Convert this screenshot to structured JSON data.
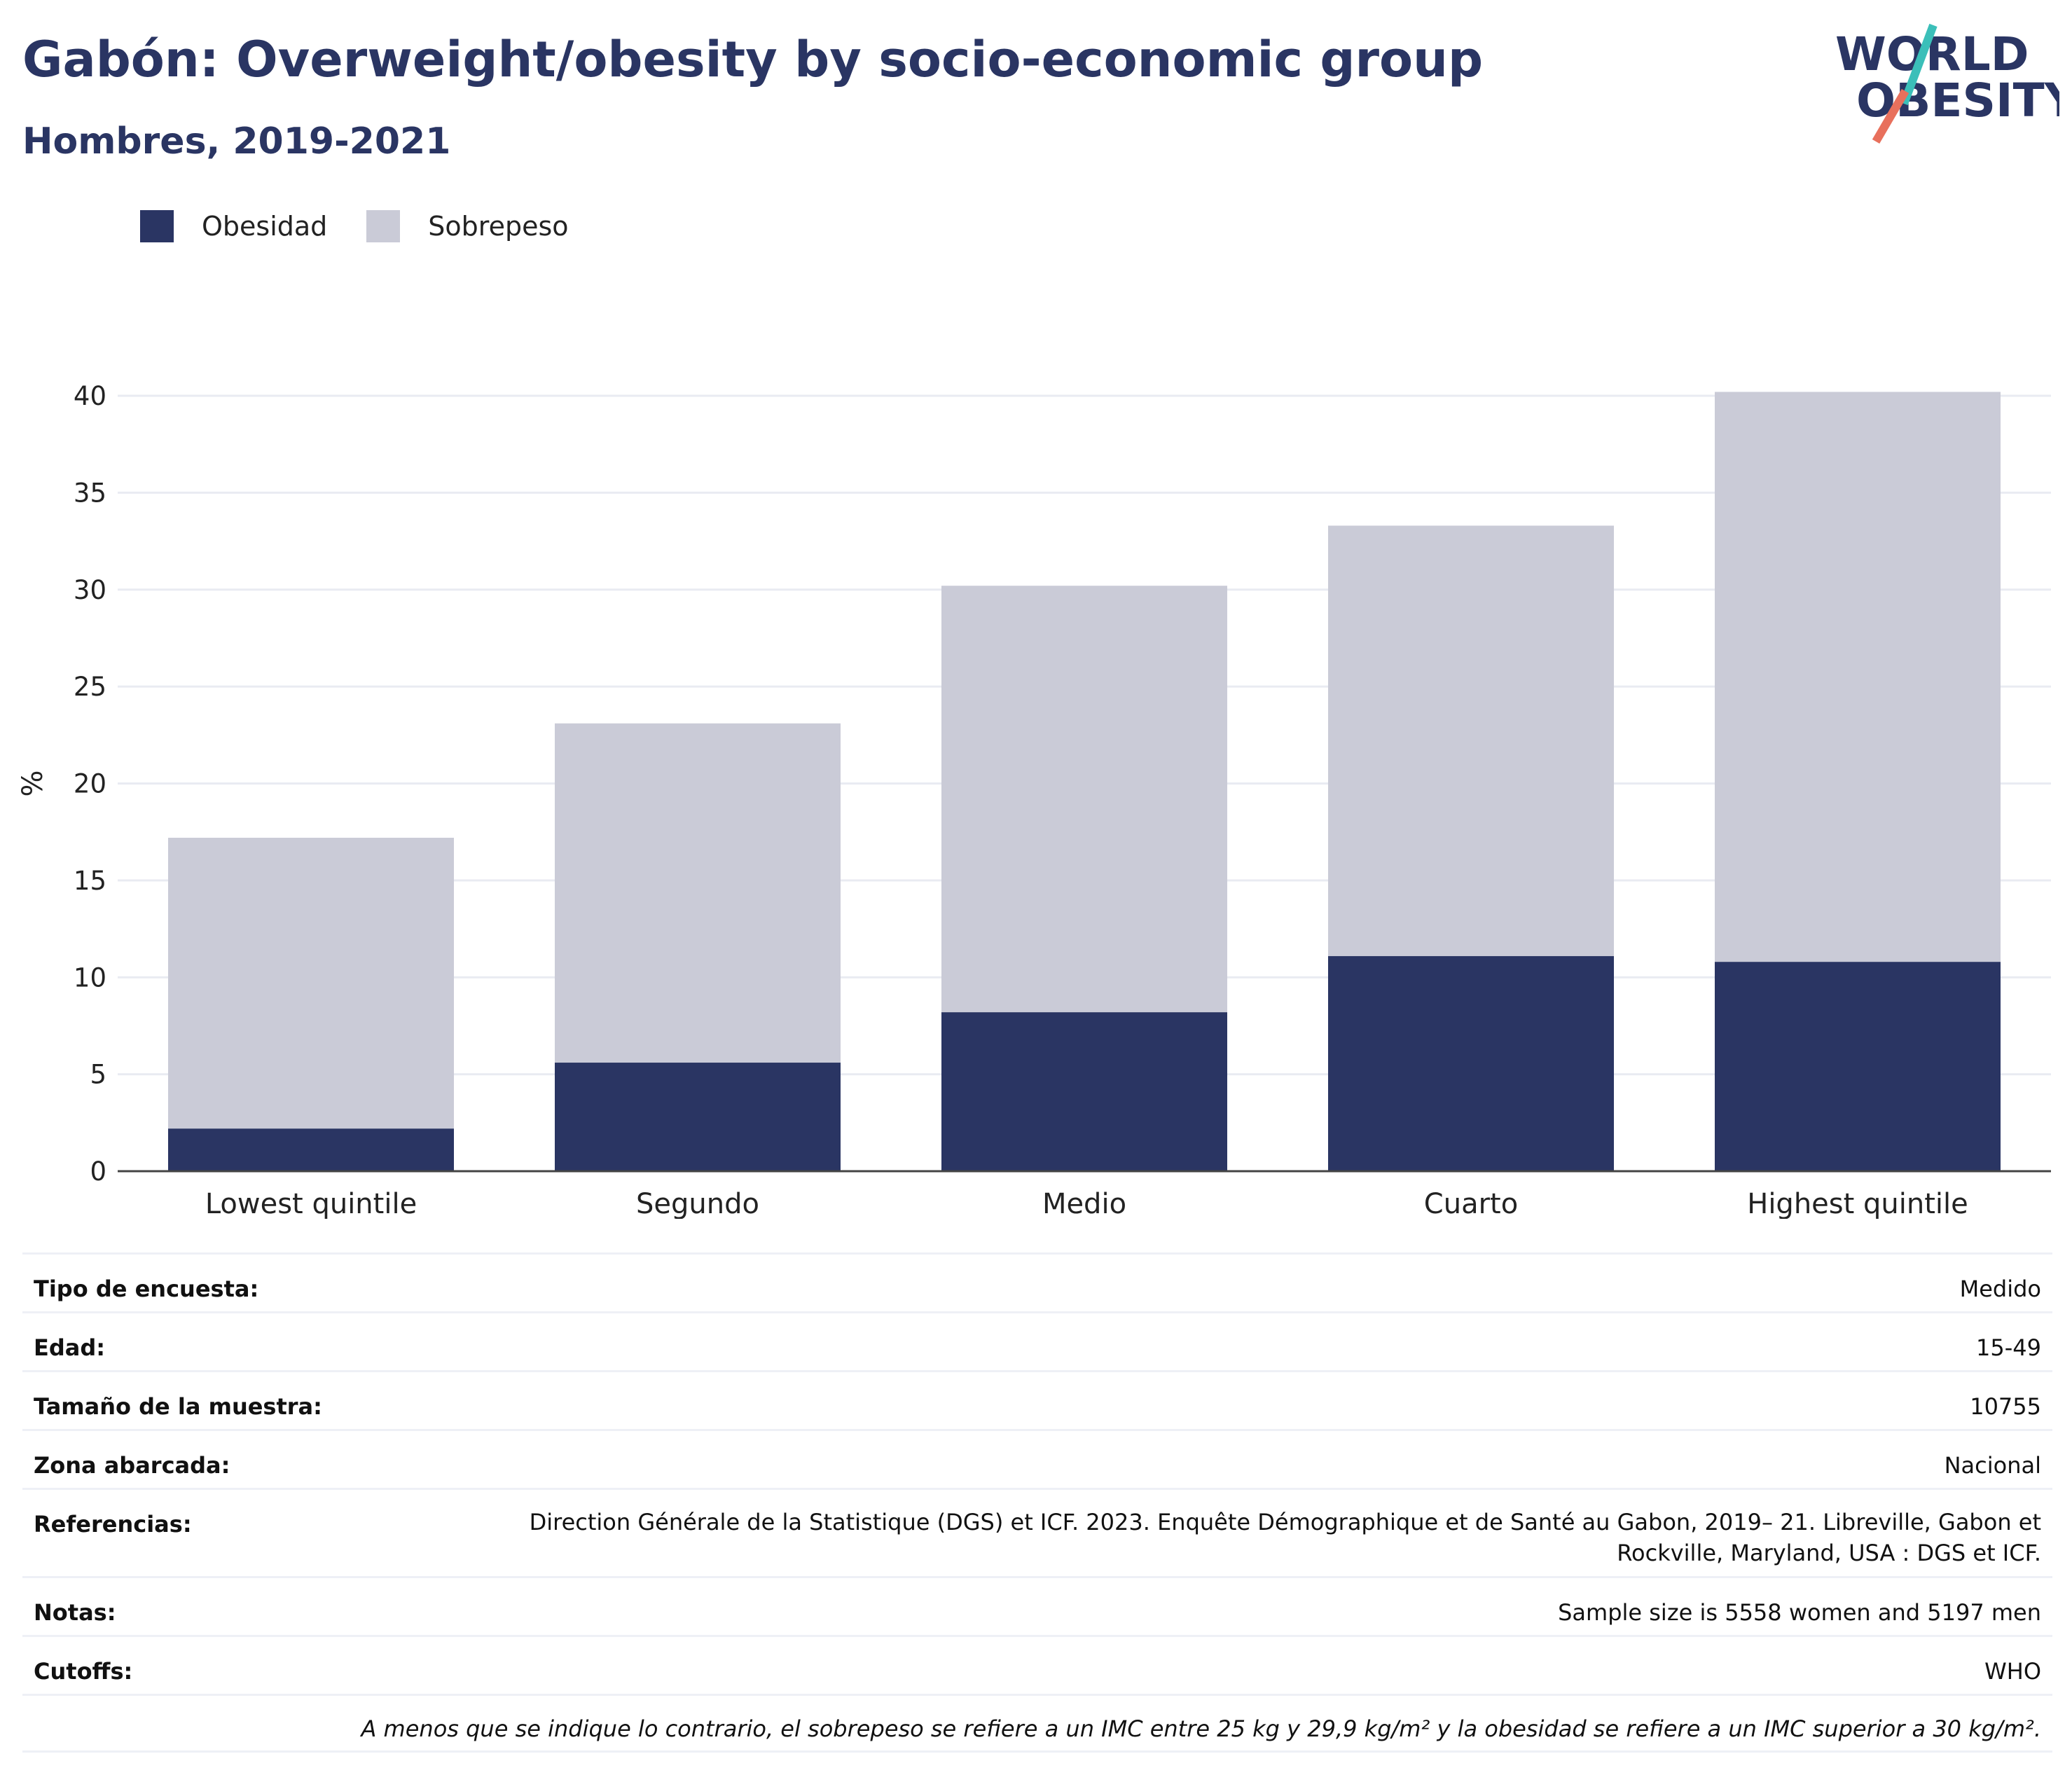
{
  "header": {
    "title": "Gabón: Overweight/obesity by socio-economic group",
    "subtitle": "Hombres, 2019-2021"
  },
  "logo": {
    "line1": "WORLD",
    "line2": "OBESITY"
  },
  "colors": {
    "obesity": "#2a3563",
    "overweight": "#cacbd7",
    "accent_teal": "#3bbfb9",
    "accent_red": "#e8705c"
  },
  "chart_data": {
    "type": "bar",
    "stacked": true,
    "categories": [
      "Lowest quintile",
      "Segundo",
      "Medio",
      "Cuarto",
      "Highest quintile"
    ],
    "series": [
      {
        "name": "Obesidad",
        "values": [
          2.2,
          5.6,
          8.2,
          11.1,
          10.8
        ]
      },
      {
        "name": "Sobrepeso",
        "values": [
          15.0,
          17.5,
          22.0,
          22.2,
          29.4
        ]
      }
    ],
    "ylabel": "%",
    "xlabel": "",
    "ylim": [
      0,
      42
    ],
    "yticks": [
      0,
      5,
      10,
      15,
      20,
      25,
      30,
      35,
      40
    ],
    "grid": true,
    "legend": "top-left"
  },
  "info": {
    "rows": [
      {
        "label": "Tipo de encuesta:",
        "value": "Medido"
      },
      {
        "label": "Edad:",
        "value": "15-49"
      },
      {
        "label": "Tamaño de la muestra:",
        "value": "10755"
      },
      {
        "label": "Zona abarcada:",
        "value": "Nacional"
      },
      {
        "label": "Referencias:",
        "value": "Direction Générale de la Statistique (DGS) et ICF. 2023. Enquête Démographique et de Santé au Gabon, 2019– 21. Libreville, Gabon et Rockville, Maryland, USA : DGS et ICF."
      },
      {
        "label": "Notas:",
        "value": "Sample size is 5558 women and 5197 men"
      },
      {
        "label": "Cutoffs:",
        "value": "WHO"
      }
    ],
    "footnote": "A menos que se indique lo contrario, el sobrepeso se refiere a un IMC entre 25 kg y 29,9 kg/m² y la obesidad se refiere a un IMC superior a 30 kg/m²."
  }
}
